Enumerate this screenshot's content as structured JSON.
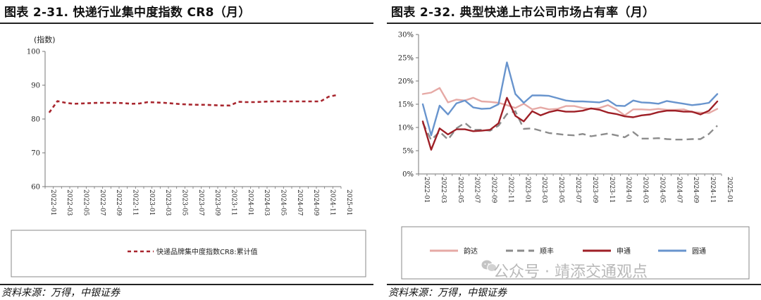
{
  "left": {
    "title": "图表 2-31. 快递行业集中度指数 CR8（月）",
    "source": "资料来源：万得，中银证券",
    "chart_data": {
      "type": "line",
      "unit_label": "(指数)",
      "ylim": [
        60,
        100
      ],
      "yticks": [
        "60",
        "70",
        "80",
        "90",
        "100"
      ],
      "x_tick_labels": [
        "2022-01",
        "2022-03",
        "2022-05",
        "2022-07",
        "2022-09",
        "2022-11",
        "2023-01",
        "2023-03",
        "2023-05",
        "2023-07",
        "2023-09",
        "2023-11",
        "2024-01",
        "2024-03",
        "2024-05",
        "2024-07",
        "2024-09",
        "2024-11",
        "2025-01"
      ],
      "series": [
        {
          "name": "快递品牌集中度指数CR8:累计值",
          "color": "#a8262e",
          "dash": "dashed",
          "values": [
            81.9,
            85.3,
            84.8,
            84.5,
            84.6,
            84.7,
            84.8,
            84.8,
            84.8,
            84.7,
            84.5,
            84.6,
            85.0,
            84.9,
            84.8,
            84.6,
            84.4,
            84.3,
            84.2,
            84.2,
            84.1,
            84.0,
            84.0,
            85.1,
            85.0,
            85.0,
            85.1,
            85.2,
            85.2,
            85.2,
            85.2,
            85.2,
            85.2,
            85.2,
            86.6,
            87.1
          ]
        }
      ],
      "grid": false,
      "legend_position": "bottom-box"
    }
  },
  "right": {
    "title": "图表 2-32. 典型快递上市公司市场占有率（月）",
    "source": "资料来源：万得，中银证券",
    "chart_data": {
      "type": "line",
      "ylim": [
        0,
        30
      ],
      "yticks": [
        "0%",
        "5%",
        "10%",
        "15%",
        "20%",
        "25%",
        "30%"
      ],
      "x_tick_labels": [
        "2022-01",
        "2022-03",
        "2022-05",
        "2022-07",
        "2022-09",
        "2022-11",
        "2023-01",
        "2023-03",
        "2023-05",
        "2023-07",
        "2023-09",
        "2023-11",
        "2024-01",
        "2024-03",
        "2024-05",
        "2024-07",
        "2024-09",
        "2024-11",
        "2025-01"
      ],
      "series": [
        {
          "name": "韵达",
          "color": "#e6a9a5",
          "dash": "solid",
          "values": [
            17.2,
            17.5,
            18.5,
            15.4,
            16.0,
            15.8,
            16.4,
            15.6,
            15.5,
            15.3,
            14.8,
            14.2,
            15.1,
            13.9,
            14.3,
            13.9,
            14.0,
            14.6,
            14.6,
            14.2,
            14.0,
            14.2,
            14.8,
            13.9,
            12.6,
            13.9,
            13.9,
            13.8,
            14.0,
            13.8,
            13.8,
            13.9,
            13.3,
            13.2,
            13.1,
            14.0
          ]
        },
        {
          "name": "顺丰",
          "color": "#8c8c8c",
          "dash": "dashed",
          "values": [
            11.0,
            7.3,
            9.1,
            7.4,
            9.8,
            11.0,
            9.5,
            9.5,
            9.3,
            10.4,
            12.9,
            13.5,
            9.7,
            9.8,
            9.3,
            8.8,
            8.6,
            8.4,
            8.3,
            8.6,
            8.1,
            8.4,
            8.7,
            8.3,
            7.9,
            9.0,
            7.6,
            7.6,
            7.7,
            7.5,
            7.4,
            7.4,
            7.5,
            7.5,
            8.6,
            10.4
          ]
        },
        {
          "name": "申通",
          "color": "#9e1f26",
          "dash": "solid",
          "values": [
            11.3,
            5.2,
            9.8,
            8.5,
            9.6,
            9.6,
            9.2,
            9.3,
            9.5,
            10.9,
            16.4,
            12.5,
            11.3,
            13.5,
            12.6,
            13.3,
            13.7,
            13.4,
            13.4,
            13.6,
            14.1,
            13.8,
            13.2,
            12.9,
            12.4,
            12.2,
            12.6,
            12.8,
            13.3,
            13.6,
            13.6,
            13.4,
            13.4,
            12.8,
            13.6,
            15.6
          ]
        },
        {
          "name": "圆通",
          "color": "#6894cd",
          "dash": "solid",
          "values": [
            15.0,
            8.3,
            14.7,
            12.8,
            15.2,
            15.8,
            14.3,
            14.0,
            14.1,
            15.0,
            24.0,
            17.2,
            15.3,
            16.9,
            16.9,
            16.8,
            16.3,
            15.8,
            15.6,
            15.6,
            15.5,
            15.4,
            15.9,
            14.7,
            14.6,
            15.8,
            15.4,
            15.3,
            15.1,
            15.7,
            15.4,
            15.1,
            14.8,
            15.0,
            15.3,
            17.2
          ]
        }
      ],
      "grid": false,
      "legend_position": "bottom-box"
    }
  },
  "watermark": {
    "text": "公众号 · 靖添交通观点",
    "icon": "wechat-icon"
  }
}
